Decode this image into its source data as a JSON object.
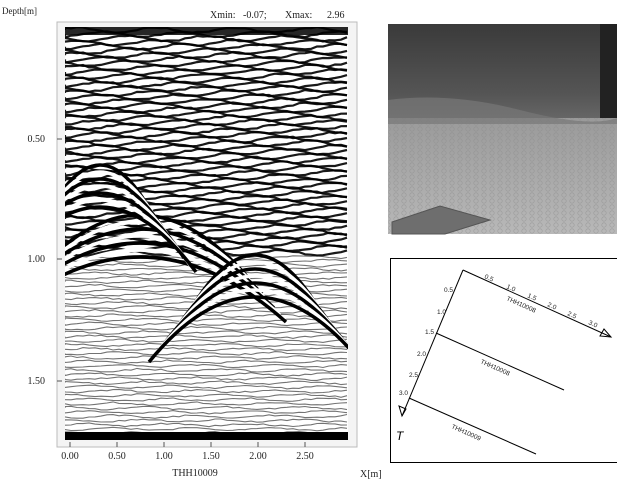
{
  "radargram": {
    "y_label": "Depth[m]",
    "xmin_label": "Xmin:",
    "xmin": "-0.07;",
    "xmax_label": "Xmax:",
    "xmax": "2.96",
    "yticks": [
      "0.50",
      "1.00",
      "1.50"
    ],
    "xticks": [
      "0.00",
      "0.50",
      "1.00",
      "1.50",
      "2.00",
      "2.50"
    ],
    "profile": "THH10009",
    "x_label": "X[m]"
  },
  "diagram": {
    "top_ticks": [
      "0.5",
      "1.0",
      "1.5",
      "2.0",
      "2.5",
      "3.0"
    ],
    "left_ticks": [
      "0.5",
      "1.0",
      "1.5",
      "2.0",
      "2.5",
      "3.0"
    ],
    "lines": [
      "THH10008",
      "THH10008",
      "THH10009"
    ],
    "axis_label": "T"
  }
}
